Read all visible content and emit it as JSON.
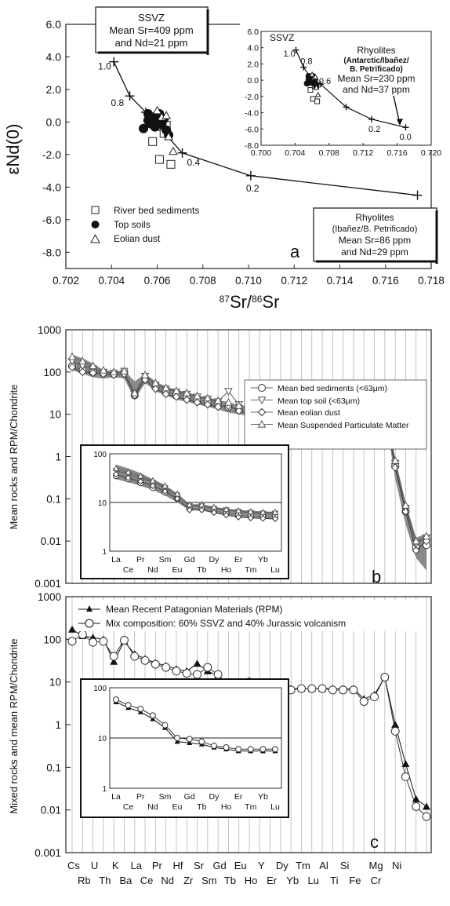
{
  "panel_a": {
    "ylabel": "εNd(0)",
    "xlabel_html": [
      "87",
      "Sr/",
      "86",
      "Sr"
    ],
    "panel_label": "a",
    "ssvz_box": [
      "SSVZ",
      "Mean Sr=409 ppm",
      "and Nd=21 ppm"
    ],
    "rhy_box": [
      "Rhyolites",
      "(Ibañez/B. Petrificado)",
      "Mean Sr=86 ppm",
      "and Nd=29 ppm"
    ],
    "legend": [
      "River bed sediments",
      "Top soils",
      "Eolian dust"
    ],
    "inset": {
      "ssvz": "SSVZ",
      "rhy": [
        "Rhyolites",
        "(Antarctic/Ibañez/",
        "B. Petrificado)",
        "Mean Sr=230 ppm",
        "and Nd=37 ppm"
      ]
    }
  },
  "panel_b": {
    "ylabel": "Mean rocks and RPM/Chondrite",
    "panel_label": "b",
    "legend": [
      "Mean bed sediments (<63μm)",
      "Mean top soil (<63μm)",
      "Mean eolian dust",
      "Mean Suspended Particulate Matter"
    ]
  },
  "panel_c": {
    "ylabel": "Mixed rocks and mean RPM/Chondrite",
    "panel_label": "c",
    "legend": [
      "Mean Recent Patagonian Materials (RPM)",
      "Mix composition: 60% SSVZ and 40% Jurassic volcanism"
    ]
  },
  "colors": {
    "envelope": "#8a8a8a",
    "axis": "#222222",
    "grid": "#b0b0b0"
  },
  "chart_data": [
    {
      "type": "scatter",
      "title": "",
      "xlabel": "87Sr/86Sr",
      "ylabel": "εNd(0)",
      "xlim": [
        0.702,
        0.718
      ],
      "ylim": [
        -9,
        6
      ],
      "xticks": [
        "0.702",
        "0.704",
        "0.706",
        "0.708",
        "0.710",
        "0.712",
        "0.714",
        "0.716",
        "0.718"
      ],
      "yticks": [
        "6.0",
        "4.0",
        "2.0",
        "0.0",
        "-2.0",
        "-4.0",
        "-6.0",
        "-8.0"
      ],
      "mixing_curve": {
        "x": [
          0.7041,
          0.7048,
          0.7055,
          0.7062,
          0.7071,
          0.7101,
          0.7174
        ],
        "y": [
          3.7,
          1.6,
          0.6,
          -0.5,
          -1.9,
          -3.3,
          -4.5
        ],
        "labels": [
          "1.0",
          "0.8",
          "",
          "",
          "0.4",
          "0.2",
          ""
        ]
      },
      "series": [
        {
          "name": "River bed sediments",
          "marker": "square",
          "x": [
            0.7058,
            0.7061,
            0.7063,
            0.7066,
            0.7064
          ],
          "y": [
            -1.2,
            -2.3,
            -0.7,
            -2.6,
            -0.2
          ]
        },
        {
          "name": "Top soils",
          "marker": "filled-circle",
          "x": [
            0.7054,
            0.7056,
            0.7057,
            0.7058,
            0.7059,
            0.706,
            0.7061,
            0.7062,
            0.7063,
            0.7064,
            0.7065,
            0.7056,
            0.7059
          ],
          "y": [
            -0.4,
            0.1,
            -0.1,
            0.3,
            -0.3,
            0.4,
            0.5,
            -0.1,
            0.2,
            -0.5,
            -0.8,
            0.5,
            0.0
          ]
        },
        {
          "name": "Eolian dust",
          "marker": "triangle",
          "x": [
            0.706,
            0.7062,
            0.7064,
            0.7065,
            0.7067
          ],
          "y": [
            0.7,
            0.3,
            0.4,
            -0.9,
            -1.8
          ]
        }
      ],
      "inset": {
        "xlim": [
          0.7,
          0.72
        ],
        "ylim": [
          -8,
          6
        ],
        "xticks": [
          "0.700",
          "0.704",
          "0.708",
          "0.712",
          "0.716",
          "0.720"
        ],
        "yticks": [
          "6.0",
          "4.0",
          "2.0",
          "0.0",
          "-2.0",
          "-4.0",
          "-6.0",
          "-8.0"
        ],
        "curve_x": [
          0.7041,
          0.705,
          0.7057,
          0.707,
          0.71,
          0.713,
          0.717
        ],
        "curve_y": [
          3.7,
          1.6,
          0.5,
          -0.5,
          -3.3,
          -4.8,
          -5.8
        ],
        "curve_labels": [
          "1.0",
          "0.8",
          "0.6",
          "",
          "",
          "0.2",
          "0.0"
        ]
      }
    },
    {
      "type": "line",
      "title": "",
      "ylabel": "Mean rocks and RPM/Chondrite",
      "yscale": "log",
      "ylim": [
        0.001,
        1000
      ],
      "yticks": [
        "1000",
        "100",
        "10",
        "1",
        "0.1",
        "0.01",
        "0.001"
      ],
      "envelope_upper": [
        260,
        210,
        160,
        110,
        100,
        110,
        60,
        90,
        60,
        45,
        38,
        33,
        28,
        25,
        22,
        18,
        16,
        14,
        9,
        9,
        8.5,
        8,
        7.5,
        7,
        7.5,
        7.5,
        7,
        7,
        4,
        5,
        15,
        0.9,
        0.08,
        0.012,
        0.015
      ],
      "envelope_lower": [
        110,
        90,
        75,
        70,
        75,
        70,
        22,
        55,
        35,
        28,
        22,
        20,
        17,
        15,
        13,
        11,
        10,
        9,
        5.5,
        5.5,
        5.5,
        5.5,
        5,
        5,
        5,
        5,
        5,
        5,
        3,
        3,
        10,
        0.3,
        0.025,
        0.004,
        0.002
      ],
      "series": [
        {
          "name": "Mean bed sediments (<63μm)",
          "marker": "circle",
          "values": [
            140,
            110,
            100,
            95,
            90,
            100,
            28,
            70,
            45,
            35,
            30,
            26,
            22,
            20,
            18,
            15,
            13,
            11,
            7,
            7,
            7,
            7,
            6.5,
            6,
            6,
            6,
            6,
            6,
            3.5,
            4,
            12,
            0.6,
            0.05,
            0.007,
            0.008
          ]
        },
        {
          "name": "Mean top soil (<63μm)",
          "marker": "triangle-down",
          "values": [
            180,
            140,
            120,
            100,
            95,
            105,
            30,
            80,
            50,
            40,
            34,
            30,
            26,
            23,
            20,
            35,
            17,
            14,
            8,
            8,
            7.5,
            7.5,
            7,
            7,
            7,
            7,
            7,
            7,
            4,
            7,
            13,
            0.7,
            0.06,
            0.009,
            0.012
          ]
        },
        {
          "name": "Mean eolian dust",
          "marker": "diamond",
          "values": [
            130,
            100,
            95,
            90,
            85,
            90,
            28,
            65,
            40,
            30,
            26,
            22,
            19,
            17,
            15,
            16,
            12,
            10,
            7,
            7,
            6.5,
            6.5,
            6,
            6,
            6,
            6,
            6,
            6,
            3.5,
            4,
            12,
            0.55,
            0.05,
            0.006,
            0.01
          ]
        },
        {
          "name": "Mean Suspended Particulate Matter",
          "marker": "triangle-up",
          "values": [
            230,
            180,
            140,
            110,
            100,
            105,
            32,
            85,
            55,
            42,
            36,
            32,
            27,
            24,
            21,
            19,
            16,
            13,
            8.5,
            8.5,
            8,
            8,
            7.5,
            7.5,
            7.5,
            7.5,
            7.5,
            7.5,
            4.5,
            6,
            14,
            0.8,
            0.07,
            0.01,
            0.013
          ]
        }
      ],
      "inset": {
        "ylim": [
          1,
          100
        ],
        "yticks": [
          "100",
          "10",
          "1"
        ],
        "categories_top": [
          "La",
          "Pr",
          "Sm",
          "Gd",
          "Dy",
          "Er",
          "Yb"
        ],
        "categories_bottom": [
          "Ce",
          "Nd",
          "Eu",
          "Tb",
          "Ho",
          "Tm",
          "Lu"
        ],
        "upper": [
          60,
          50,
          40,
          30,
          23,
          14,
          9,
          9,
          8,
          7.5,
          7,
          6.8,
          6.5,
          6.5
        ],
        "lower": [
          30,
          26,
          22,
          18,
          14,
          10,
          7,
          7,
          6,
          5.5,
          5,
          4.8,
          4.6,
          4.5
        ],
        "series": [
          [
            35,
            30,
            25,
            20,
            16,
            12,
            7.5,
            7.5,
            6.8,
            6,
            5.6,
            5.3,
            5.2,
            5.2
          ],
          [
            45,
            38,
            32,
            26,
            20,
            14,
            8.5,
            8.5,
            7.5,
            7,
            6.5,
            6.2,
            6,
            6
          ],
          [
            38,
            32,
            27,
            22,
            17,
            12,
            7,
            7,
            6.2,
            5.5,
            5,
            4.8,
            4.7,
            4.6
          ],
          [
            50,
            42,
            35,
            28,
            22,
            15,
            9,
            9,
            8,
            7.2,
            6.8,
            6.5,
            6.3,
            6.3
          ]
        ]
      }
    },
    {
      "type": "line",
      "title": "",
      "ylabel": "Mixed rocks and mean RPM/Chondrite",
      "yscale": "log",
      "ylim": [
        0.001,
        1000
      ],
      "yticks": [
        "1000",
        "100",
        "10",
        "1",
        "0.1",
        "0.01",
        "0.001"
      ],
      "categories_top": [
        "Cs",
        "U",
        "K",
        "La",
        "Pr",
        "Hf",
        "Sr",
        "Gd",
        "Eu",
        "Y",
        "Dy",
        "Tm",
        "Al",
        "Si",
        "Mg",
        "Ni"
      ],
      "categories_bottom": [
        "Rb",
        "Th",
        "Ba",
        "Ce",
        "Nd",
        "Zr",
        "Sm",
        "Tb",
        "Ho",
        "Er",
        "Yb",
        "Lu",
        "Ti",
        "Fe",
        "Cr"
      ],
      "series": [
        {
          "name": "Mean Recent Patagonian Materials (RPM)",
          "marker": "filled-triangle",
          "values": [
            170,
            120,
            110,
            100,
            30,
            90,
            45,
            35,
            28,
            24,
            20,
            18,
            27,
            18,
            14,
            8.5,
            8,
            8.5,
            8,
            7,
            7,
            7,
            7,
            7,
            7,
            7,
            7,
            7,
            4,
            5,
            13,
            1.0,
            0.12,
            0.018,
            0.012
          ]
        },
        {
          "name": "Mix composition: 60% SSVZ and 40% Jurassic volcanism",
          "marker": "circle",
          "values": [
            90,
            130,
            85,
            90,
            40,
            95,
            40,
            32,
            26,
            22,
            18,
            16,
            15,
            22,
            15,
            8,
            7.5,
            10,
            7,
            6.5,
            6.5,
            6.5,
            7,
            7,
            7,
            6.5,
            6.5,
            6.5,
            3.5,
            4.5,
            13,
            0.7,
            0.06,
            0.012,
            0.007
          ]
        }
      ],
      "inset": {
        "ylim": [
          1,
          100
        ],
        "yticks": [
          "100",
          "10",
          "1"
        ],
        "categories_top": [
          "La",
          "Pr",
          "Sm",
          "Gd",
          "Dy",
          "Er",
          "Yb"
        ],
        "categories_bottom": [
          "Ce",
          "Nd",
          "Eu",
          "Tb",
          "Ho",
          "Tm",
          "Lu"
        ],
        "series": [
          [
            52,
            40,
            33,
            24,
            16,
            8.5,
            8,
            7.5,
            6.5,
            6,
            5.5,
            5.5,
            5.5,
            5.5
          ],
          [
            58,
            45,
            38,
            28,
            18,
            10,
            9.5,
            8.5,
            7,
            6.5,
            6,
            6,
            6,
            6
          ]
        ]
      }
    }
  ]
}
